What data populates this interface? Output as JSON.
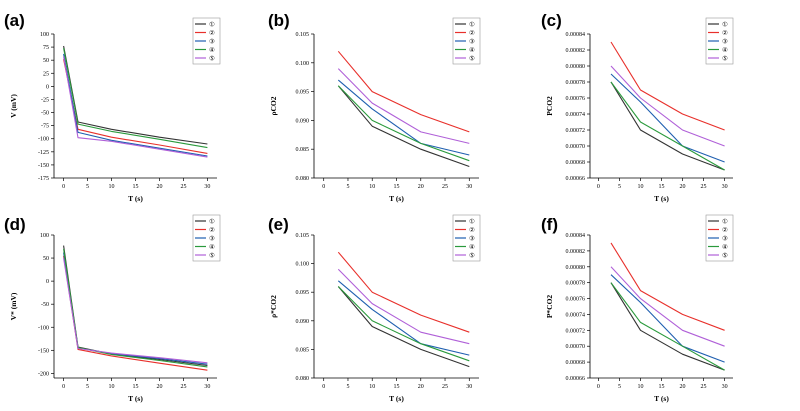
{
  "legend_labels": [
    "①",
    "②",
    "③",
    "④",
    "⑤"
  ],
  "series_colors": [
    "#333333",
    "#e8302b",
    "#1f5fb0",
    "#2a9a3c",
    "#b060d8"
  ],
  "chart_data": [
    {
      "panel": "(a)",
      "type": "line",
      "xlabel": "T (s)",
      "ylabel": "V (mV)",
      "xlim": [
        -2,
        32
      ],
      "ylim": [
        -175,
        100
      ],
      "xticks": [
        0,
        5,
        10,
        15,
        20,
        25,
        30
      ],
      "yticks": [
        100,
        75,
        50,
        25,
        0,
        -25,
        -50,
        -75,
        -100,
        -125,
        -150,
        -175
      ],
      "x": [
        0,
        3,
        10,
        20,
        30
      ],
      "series": [
        {
          "name": "①",
          "values": [
            77,
            -68,
            -82,
            -97,
            -110
          ]
        },
        {
          "name": "②",
          "values": [
            52,
            -82,
            -97,
            -112,
            -128
          ]
        },
        {
          "name": "③",
          "values": [
            62,
            -88,
            -103,
            -118,
            -133
          ]
        },
        {
          "name": "④",
          "values": [
            73,
            -72,
            -86,
            -101,
            -117
          ]
        },
        {
          "name": "⑤",
          "values": [
            57,
            -98,
            -105,
            -120,
            -135
          ]
        }
      ]
    },
    {
      "panel": "(b)",
      "type": "line",
      "xlabel": "T (s)",
      "ylabel": "ρCO2",
      "xlim": [
        -2,
        32
      ],
      "ylim": [
        0.08,
        0.105
      ],
      "xticks": [
        0,
        5,
        10,
        15,
        20,
        25,
        30
      ],
      "yticks": [
        "0.080",
        "0.085",
        "0.090",
        "0.095",
        "0.100",
        "0.105"
      ],
      "x": [
        3,
        10,
        20,
        30
      ],
      "series": [
        {
          "name": "①",
          "values": [
            0.096,
            0.089,
            0.085,
            0.082
          ]
        },
        {
          "name": "②",
          "values": [
            0.102,
            0.095,
            0.091,
            0.088
          ]
        },
        {
          "name": "③",
          "values": [
            0.097,
            0.092,
            0.086,
            0.084
          ]
        },
        {
          "name": "④",
          "values": [
            0.096,
            0.09,
            0.086,
            0.083
          ]
        },
        {
          "name": "⑤",
          "values": [
            0.099,
            0.093,
            0.088,
            0.086
          ]
        }
      ]
    },
    {
      "panel": "(c)",
      "type": "line",
      "xlabel": "T (s)",
      "ylabel": "PCO2",
      "xlim": [
        -2,
        32
      ],
      "ylim": [
        0.00066,
        0.00084
      ],
      "xticks": [
        0,
        5,
        10,
        15,
        20,
        25,
        30
      ],
      "yticks": [
        "0.00066",
        "0.00068",
        "0.00070",
        "0.00072",
        "0.00074",
        "0.00076",
        "0.00078",
        "0.00080",
        "0.00082",
        "0.00084"
      ],
      "x": [
        3,
        10,
        20,
        30
      ],
      "series": [
        {
          "name": "①",
          "values": [
            0.00078,
            0.00072,
            0.00069,
            0.00067
          ]
        },
        {
          "name": "②",
          "values": [
            0.00083,
            0.00077,
            0.00074,
            0.00072
          ]
        },
        {
          "name": "③",
          "values": [
            0.00079,
            0.000755,
            0.0007,
            0.00068
          ]
        },
        {
          "name": "④",
          "values": [
            0.00078,
            0.00073,
            0.0007,
            0.00067
          ]
        },
        {
          "name": "⑤",
          "values": [
            0.0008,
            0.00076,
            0.00072,
            0.0007
          ]
        }
      ]
    },
    {
      "panel": "(d)",
      "type": "line",
      "xlabel": "T (s)",
      "ylabel": "V* (mV)",
      "xlim": [
        -2,
        32
      ],
      "ylim": [
        -210,
        100
      ],
      "xticks": [
        0,
        5,
        10,
        15,
        20,
        25,
        30
      ],
      "yticks": [
        100,
        50,
        0,
        -50,
        -100,
        -150,
        -200
      ],
      "x": [
        0,
        3,
        10,
        20,
        30
      ],
      "series": [
        {
          "name": "①",
          "values": [
            77,
            -143,
            -158,
            -170,
            -183
          ]
        },
        {
          "name": "②",
          "values": [
            55,
            -148,
            -162,
            -178,
            -193
          ]
        },
        {
          "name": "③",
          "values": [
            62,
            -145,
            -157,
            -168,
            -180
          ]
        },
        {
          "name": "④",
          "values": [
            70,
            -144,
            -159,
            -172,
            -186
          ]
        },
        {
          "name": "⑤",
          "values": [
            50,
            -146,
            -156,
            -166,
            -177
          ]
        }
      ]
    },
    {
      "panel": "(e)",
      "type": "line",
      "xlabel": "T (s)",
      "ylabel": "ρ*CO2",
      "xlim": [
        -2,
        32
      ],
      "ylim": [
        0.08,
        0.105
      ],
      "xticks": [
        0,
        5,
        10,
        15,
        20,
        25,
        30
      ],
      "yticks": [
        "0.080",
        "0.085",
        "0.090",
        "0.095",
        "0.100",
        "0.105"
      ],
      "x": [
        3,
        10,
        20,
        30
      ],
      "series": [
        {
          "name": "①",
          "values": [
            0.096,
            0.089,
            0.085,
            0.082
          ]
        },
        {
          "name": "②",
          "values": [
            0.102,
            0.095,
            0.091,
            0.088
          ]
        },
        {
          "name": "③",
          "values": [
            0.097,
            0.092,
            0.086,
            0.084
          ]
        },
        {
          "name": "④",
          "values": [
            0.096,
            0.09,
            0.086,
            0.083
          ]
        },
        {
          "name": "⑤",
          "values": [
            0.099,
            0.093,
            0.088,
            0.086
          ]
        }
      ]
    },
    {
      "panel": "(f)",
      "type": "line",
      "xlabel": "T (s)",
      "ylabel": "P*CO2",
      "xlim": [
        -2,
        32
      ],
      "ylim": [
        0.00066,
        0.00084
      ],
      "xticks": [
        0,
        5,
        10,
        15,
        20,
        25,
        30
      ],
      "yticks": [
        "0.00066",
        "0.00068",
        "0.00070",
        "0.00072",
        "0.00074",
        "0.00076",
        "0.00078",
        "0.00080",
        "0.00082",
        "0.00084"
      ],
      "x": [
        3,
        10,
        20,
        30
      ],
      "series": [
        {
          "name": "①",
          "values": [
            0.00078,
            0.00072,
            0.00069,
            0.00067
          ]
        },
        {
          "name": "②",
          "values": [
            0.00083,
            0.00077,
            0.00074,
            0.00072
          ]
        },
        {
          "name": "③",
          "values": [
            0.00079,
            0.000755,
            0.0007,
            0.00068
          ]
        },
        {
          "name": "④",
          "values": [
            0.00078,
            0.00073,
            0.0007,
            0.00067
          ]
        },
        {
          "name": "⑤",
          "values": [
            0.0008,
            0.00076,
            0.00072,
            0.0007
          ]
        }
      ]
    }
  ]
}
